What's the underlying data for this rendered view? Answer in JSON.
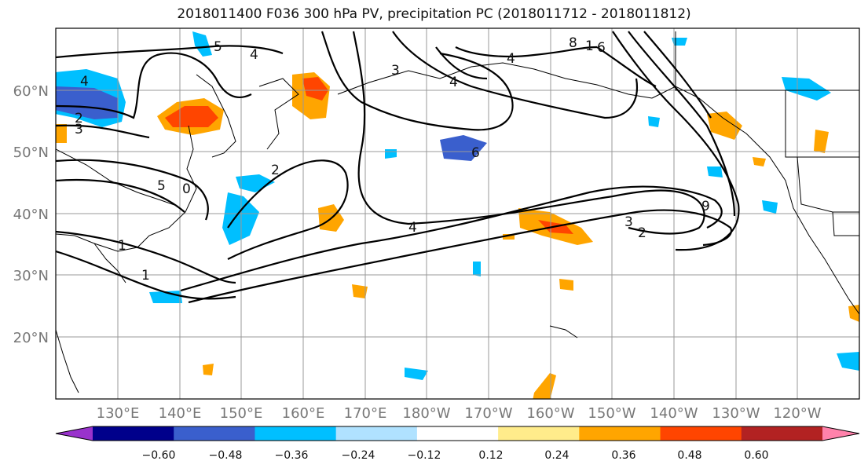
{
  "title": "2018011400 F036 300 hPa PV, precipitation PC (2018011712 - 2018011812)",
  "map": {
    "lat_labels": [
      "60°N",
      "50°N",
      "40°N",
      "30°N",
      "20°N"
    ],
    "lon_labels": [
      "130°E",
      "140°E",
      "150°E",
      "160°E",
      "170°E",
      "180°W",
      "170°W",
      "160°W",
      "150°W",
      "140°W",
      "130°W",
      "120°W"
    ],
    "contour_labels": [
      "4",
      "2",
      "3",
      "5",
      "4",
      "3",
      "4",
      "8",
      "1",
      "6",
      "4",
      "6",
      "2",
      "5",
      "0",
      "1",
      "1",
      "4",
      "3",
      "2",
      "9"
    ]
  },
  "colorbar": {
    "ticks": [
      "−0.60",
      "−0.48",
      "−0.36",
      "−0.24",
      "−0.12",
      "0.12",
      "0.24",
      "0.36",
      "0.48",
      "0.60"
    ],
    "colors": [
      "#9932cc",
      "#00008b",
      "#3a5fcd",
      "#00bfff",
      "#b0e2ff",
      "#ffffff",
      "#ffec8b",
      "#ffa500",
      "#ff4500",
      "#b22222",
      "#ff82ab"
    ]
  }
}
